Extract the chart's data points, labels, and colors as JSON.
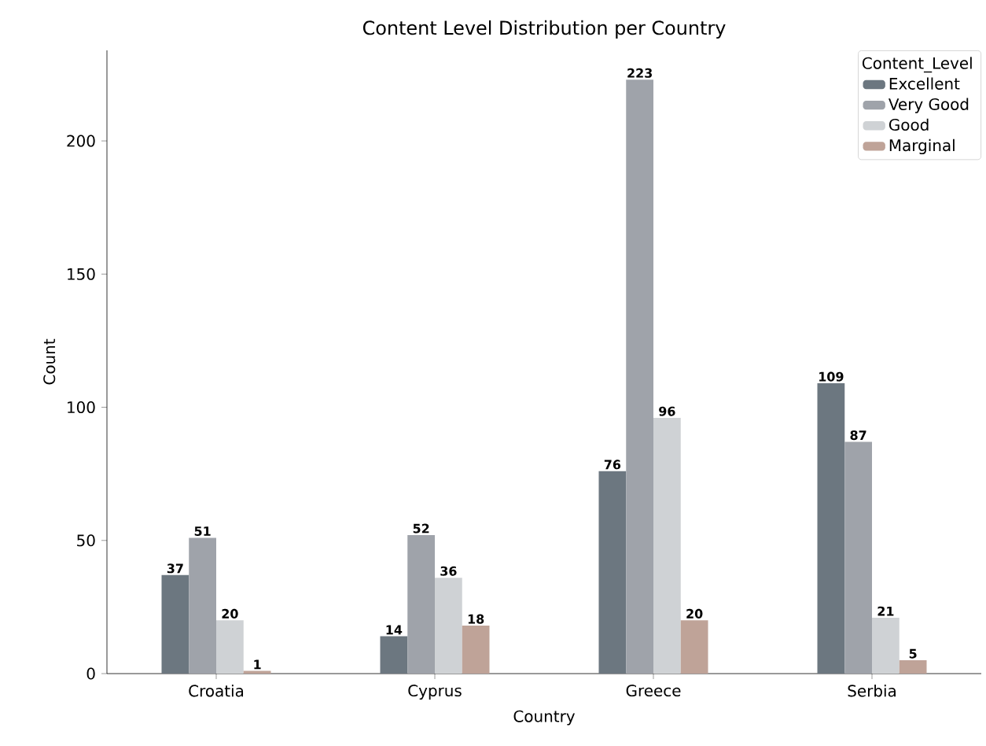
{
  "chart_data": {
    "type": "bar",
    "title": "Content Level Distribution per Country",
    "xlabel": "Country",
    "ylabel": "Count",
    "legend_title": "Content_Level",
    "categories": [
      "Croatia",
      "Cyprus",
      "Greece",
      "Serbia"
    ],
    "series": [
      {
        "name": "Excellent",
        "color": "#6c7780",
        "values": [
          37,
          14,
          76,
          109
        ]
      },
      {
        "name": "Very Good",
        "color": "#9fa3aa",
        "values": [
          51,
          52,
          223,
          87
        ]
      },
      {
        "name": "Good",
        "color": "#cfd2d5",
        "values": [
          20,
          36,
          96,
          21
        ]
      },
      {
        "name": "Marginal",
        "color": "#bfa398",
        "values": [
          1,
          18,
          20,
          5
        ]
      }
    ],
    "ylim": [
      0,
      234
    ],
    "yticks": [
      0,
      50,
      100,
      150,
      200
    ],
    "data_labels": true,
    "legend": "top right",
    "grid": false
  }
}
